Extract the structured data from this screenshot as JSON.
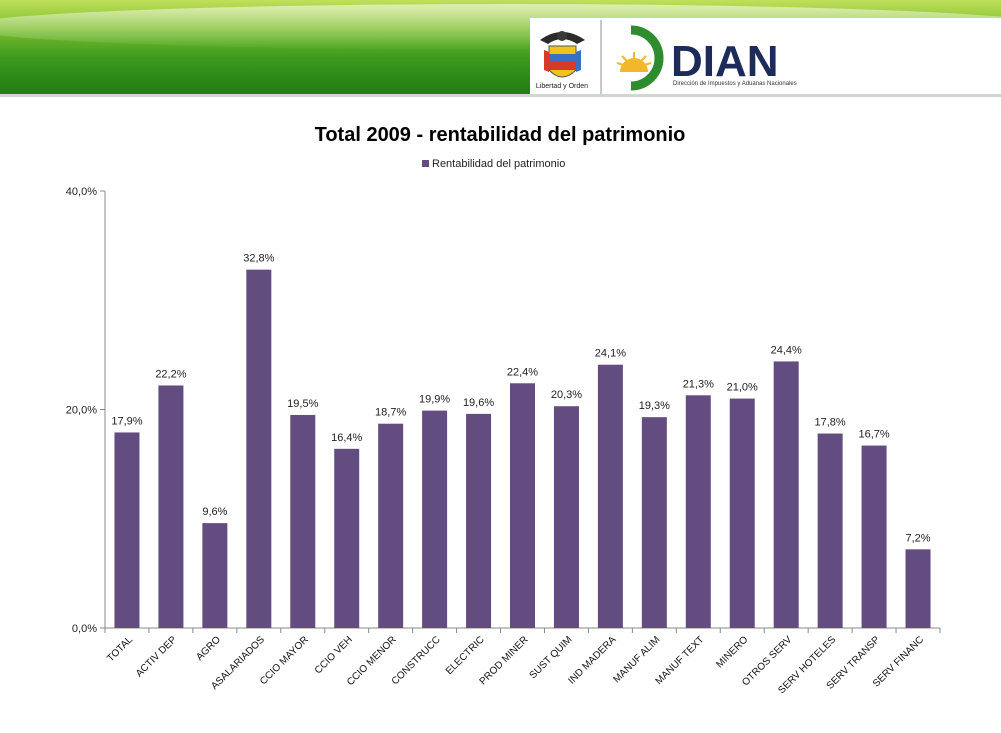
{
  "header": {
    "shield_caption": "Libertad y Orden",
    "brand_name": "DIAN",
    "brand_subtitle": "Dirección de Impuestos y Aduanas Nacionales",
    "colors": {
      "green_dark": "#1f7a12",
      "green_light": "#bfe05a",
      "dian_green": "#2e8b2e",
      "dian_navy": "#1d2b5a",
      "sun": "#f2b72a"
    }
  },
  "chart_data": {
    "type": "bar",
    "title": "Total 2009 - rentabilidad del patrimonio",
    "legend": {
      "position": "top",
      "label": "Rentabilidad del patrimonio"
    },
    "series": [
      {
        "name": "Rentabilidad del patrimonio",
        "color": "#634d80",
        "values": [
          17.9,
          22.2,
          9.6,
          32.8,
          19.5,
          16.4,
          18.7,
          19.9,
          19.6,
          22.4,
          20.3,
          24.1,
          19.3,
          21.3,
          21.0,
          24.4,
          17.8,
          16.7,
          7.2
        ]
      }
    ],
    "categories": [
      "TOTAL",
      "ACTIV DEP",
      "AGRO",
      "ASALARIADOS",
      "CCIO MAYOR",
      "CCIO VEH",
      "CCIO MENOR",
      "CONSTRUCC",
      "ELECTRIC",
      "PROD MINER",
      "SUST QUIM",
      "IND MADERA",
      "MANUF ALIM",
      "MANUF TEXT",
      "MINERO",
      "OTROS SERV",
      "SERV HOTELES",
      "SERV TRANSP",
      "SERV FINANC"
    ],
    "data_labels": [
      "17,9%",
      "22,2%",
      "9,6%",
      "32,8%",
      "19,5%",
      "16,4%",
      "18,7%",
      "19,9%",
      "19,6%",
      "22,4%",
      "20,3%",
      "24,1%",
      "19,3%",
      "21,3%",
      "21,0%",
      "24,4%",
      "17,8%",
      "16,7%",
      "7,2%"
    ],
    "ylim": [
      0,
      40
    ],
    "yticks": [
      0,
      20,
      40
    ],
    "ytick_labels": [
      "0,0%",
      "20,0%",
      "40,0%"
    ],
    "grid": false
  }
}
